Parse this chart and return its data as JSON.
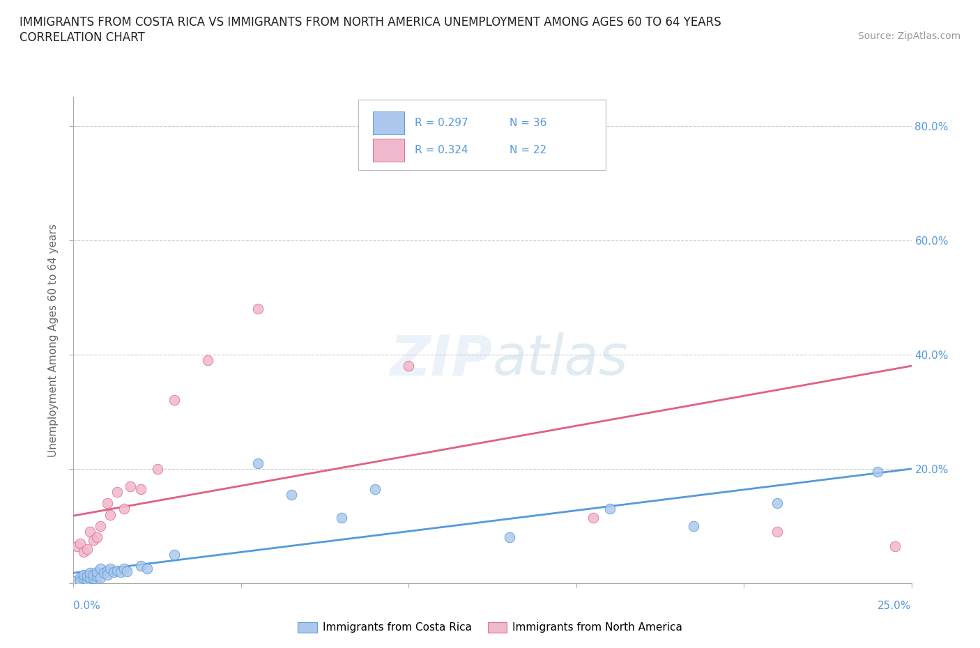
{
  "title_line1": "IMMIGRANTS FROM COSTA RICA VS IMMIGRANTS FROM NORTH AMERICA UNEMPLOYMENT AMONG AGES 60 TO 64 YEARS",
  "title_line2": "CORRELATION CHART",
  "source_text": "Source: ZipAtlas.com",
  "ylabel": "Unemployment Among Ages 60 to 64 years",
  "xmin": 0.0,
  "xmax": 0.25,
  "ymin": 0.0,
  "ymax": 0.85,
  "watermark_line1": "ZIP",
  "watermark_line2": "atlas",
  "legend_blue_R": "R = 0.297",
  "legend_blue_N": "N = 36",
  "legend_pink_R": "R = 0.324",
  "legend_pink_N": "N = 22",
  "blue_fill": "#adc8ee",
  "pink_fill": "#f0b8cc",
  "blue_edge": "#5a9fd4",
  "pink_edge": "#e07090",
  "blue_line": "#5599dd",
  "pink_line": "#e06080",
  "grid_color": "#cccccc",
  "tick_color": "#aaaaaa",
  "right_label_color": "#5599dd",
  "ylabel_color": "#666666",
  "costa_rica_x": [
    0.001,
    0.002,
    0.002,
    0.003,
    0.003,
    0.004,
    0.004,
    0.005,
    0.005,
    0.006,
    0.006,
    0.007,
    0.007,
    0.008,
    0.008,
    0.009,
    0.01,
    0.01,
    0.011,
    0.012,
    0.013,
    0.014,
    0.015,
    0.016,
    0.02,
    0.022,
    0.03,
    0.055,
    0.065,
    0.08,
    0.09,
    0.13,
    0.16,
    0.185,
    0.21,
    0.24
  ],
  "costa_rica_y": [
    0.005,
    0.01,
    0.004,
    0.008,
    0.015,
    0.006,
    0.012,
    0.01,
    0.018,
    0.008,
    0.015,
    0.012,
    0.02,
    0.01,
    0.025,
    0.018,
    0.022,
    0.015,
    0.025,
    0.02,
    0.022,
    0.02,
    0.025,
    0.021,
    0.03,
    0.025,
    0.05,
    0.21,
    0.155,
    0.115,
    0.165,
    0.08,
    0.13,
    0.1,
    0.14,
    0.195
  ],
  "north_america_x": [
    0.001,
    0.002,
    0.003,
    0.004,
    0.005,
    0.006,
    0.007,
    0.008,
    0.01,
    0.011,
    0.013,
    0.015,
    0.017,
    0.02,
    0.025,
    0.03,
    0.04,
    0.055,
    0.1,
    0.155,
    0.21,
    0.245
  ],
  "north_america_y": [
    0.065,
    0.07,
    0.055,
    0.06,
    0.09,
    0.075,
    0.08,
    0.1,
    0.14,
    0.12,
    0.16,
    0.13,
    0.17,
    0.165,
    0.2,
    0.32,
    0.39,
    0.48,
    0.38,
    0.115,
    0.09,
    0.065
  ]
}
